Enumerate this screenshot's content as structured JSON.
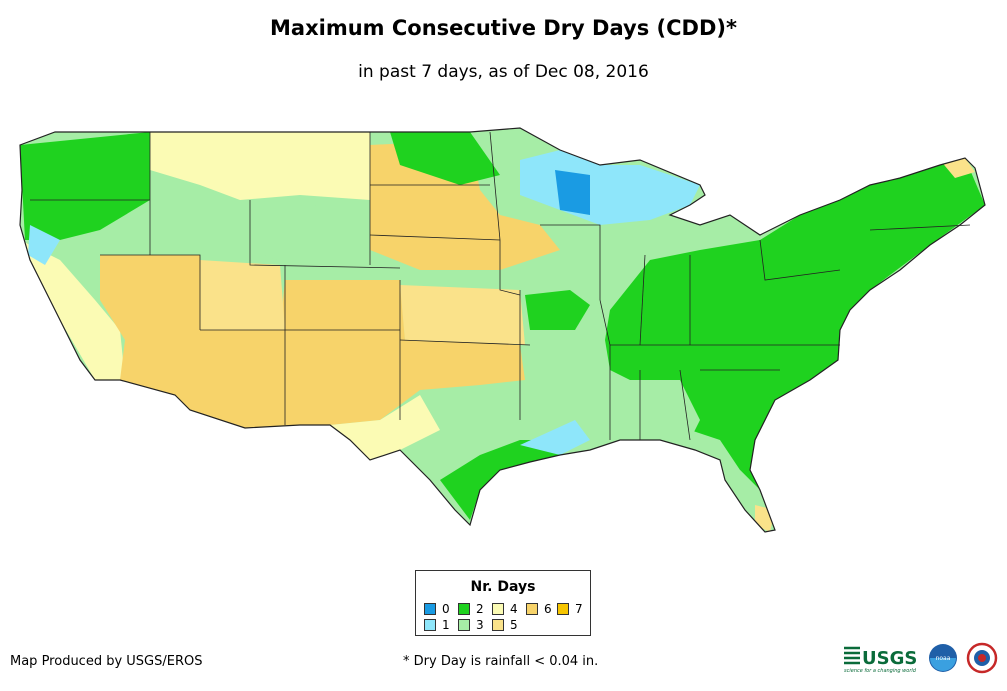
{
  "title": "Maximum Consecutive Dry Days (CDD)*",
  "subtitle": "in past 7 days, as of Dec 08, 2016",
  "legend": {
    "title": "Nr. Days",
    "items": [
      {
        "label": "0",
        "color": "#1a9be3"
      },
      {
        "label": "1",
        "color": "#8ee6fa"
      },
      {
        "label": "2",
        "color": "#1fd21f"
      },
      {
        "label": "3",
        "color": "#a6eda6"
      },
      {
        "label": "4",
        "color": "#fbfbb4"
      },
      {
        "label": "5",
        "color": "#fae28a"
      },
      {
        "label": "6",
        "color": "#f7d36a"
      },
      {
        "label": "7",
        "color": "#f6c500"
      }
    ]
  },
  "credit": "Map Produced by USGS/EROS",
  "footnote": "* Dry Day is rainfall < 0.04 in.",
  "logos": {
    "usgs_text": "USGS",
    "usgs_tagline": "science for a changing world",
    "noaa_text": "noaa"
  }
}
